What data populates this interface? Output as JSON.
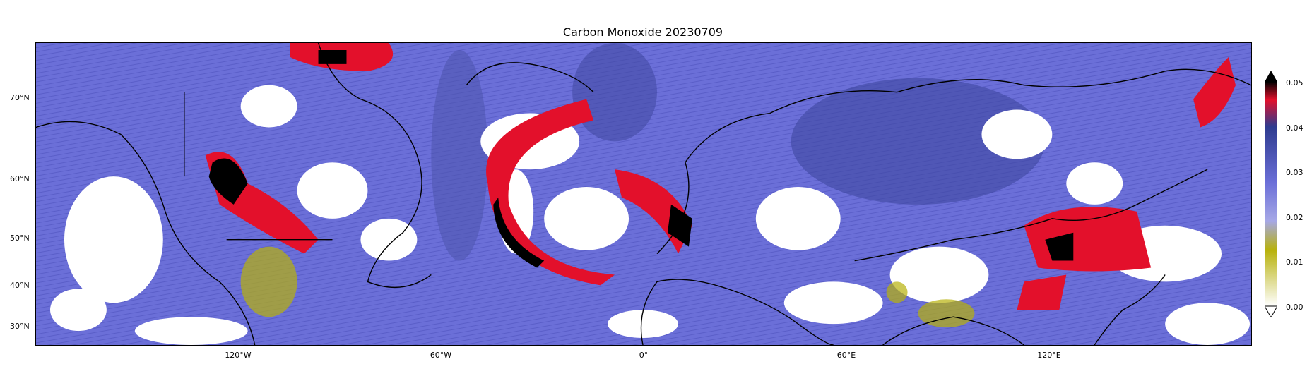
{
  "title": "Carbon Monoxide 20230709",
  "lat_ticks": [
    "70°N",
    "60°N",
    "50°N",
    "40°N",
    "30°N"
  ],
  "lon_ticks": [
    "120°W",
    "60°W",
    "0°",
    "60°E",
    "120°E"
  ],
  "colorbar": {
    "ticks": [
      "0.05",
      "0.04",
      "0.03",
      "0.02",
      "0.01",
      "0.00"
    ],
    "colors": [
      "#000000",
      "#e3102b",
      "#2e3b8f",
      "#6b6fd8",
      "#b7b10b",
      "#ffffff"
    ]
  }
}
